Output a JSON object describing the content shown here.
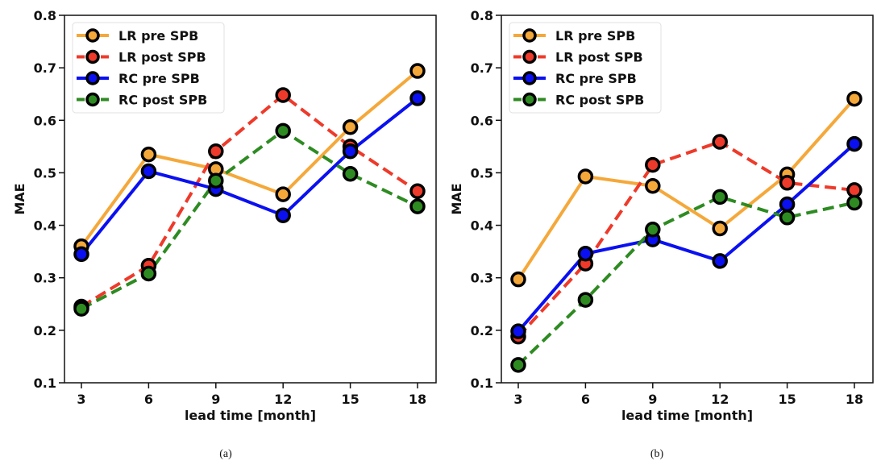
{
  "chart_data": [
    {
      "type": "line",
      "caption": "(a)",
      "xlabel": "lead time [month]",
      "ylabel": "MAE",
      "x": [
        3,
        6,
        9,
        12,
        15,
        18
      ],
      "xticks": [
        "3",
        "6",
        "9",
        "12",
        "15",
        "18"
      ],
      "yticks": [
        "0.1",
        "0.2",
        "0.3",
        "0.4",
        "0.5",
        "0.6",
        "0.7",
        "0.8"
      ],
      "ylim": [
        0.1,
        0.8
      ],
      "grid": false,
      "legend": "top-left",
      "series": [
        {
          "name": "LR pre SPB",
          "color": "#f5a83a",
          "dashed": false,
          "values": [
            0.36,
            0.535,
            0.507,
            0.459,
            0.587,
            0.694
          ]
        },
        {
          "name": "LR post SPB",
          "color": "#ee3a2a",
          "dashed": true,
          "values": [
            0.245,
            0.323,
            0.541,
            0.648,
            0.55,
            0.465
          ]
        },
        {
          "name": "RC pre SPB",
          "color": "#0a10f0",
          "dashed": false,
          "values": [
            0.345,
            0.503,
            0.469,
            0.419,
            0.541,
            0.642
          ]
        },
        {
          "name": "RC post SPB",
          "color": "#2e8b22",
          "dashed": true,
          "values": [
            0.241,
            0.308,
            0.485,
            0.58,
            0.498,
            0.436
          ]
        }
      ]
    },
    {
      "type": "line",
      "caption": "(b)",
      "xlabel": "lead time [month]",
      "ylabel": "MAE",
      "x": [
        3,
        6,
        9,
        12,
        15,
        18
      ],
      "xticks": [
        "3",
        "6",
        "9",
        "12",
        "15",
        "18"
      ],
      "yticks": [
        "0.1",
        "0.2",
        "0.3",
        "0.4",
        "0.5",
        "0.6",
        "0.7",
        "0.8"
      ],
      "ylim": [
        0.1,
        0.8
      ],
      "grid": false,
      "legend": "top-left",
      "series": [
        {
          "name": "LR pre SPB",
          "color": "#f5a83a",
          "dashed": false,
          "values": [
            0.297,
            0.493,
            0.475,
            0.394,
            0.497,
            0.641
          ]
        },
        {
          "name": "LR post SPB",
          "color": "#ee3a2a",
          "dashed": true,
          "values": [
            0.188,
            0.327,
            0.515,
            0.559,
            0.481,
            0.467
          ]
        },
        {
          "name": "RC pre SPB",
          "color": "#0a10f0",
          "dashed": false,
          "values": [
            0.198,
            0.346,
            0.373,
            0.332,
            0.44,
            0.555
          ]
        },
        {
          "name": "RC post SPB",
          "color": "#2e8b22",
          "dashed": true,
          "values": [
            0.134,
            0.258,
            0.392,
            0.454,
            0.415,
            0.443
          ]
        }
      ]
    }
  ]
}
